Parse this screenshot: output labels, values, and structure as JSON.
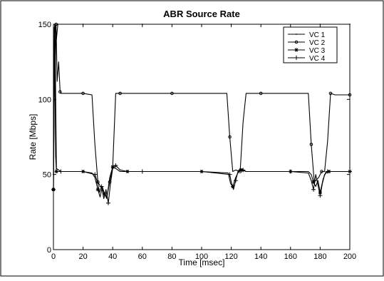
{
  "chart_data": {
    "type": "line",
    "title": "ABR  Source Rate",
    "xlabel": "Time [msec]",
    "ylabel": "Rate [Mbps]",
    "xlim": [
      0,
      200
    ],
    "ylim": [
      0,
      150
    ],
    "xticks": [
      0,
      20,
      40,
      60,
      80,
      100,
      120,
      140,
      160,
      180,
      200
    ],
    "yticks": [
      0,
      50,
      100,
      150
    ],
    "grid": false,
    "legend_position": "top-right",
    "series": [
      {
        "name": "VC  1",
        "marker": "point",
        "x": [
          0,
          1,
          2,
          3,
          5,
          10,
          20,
          30,
          40,
          60,
          80,
          100,
          120,
          140,
          160,
          180,
          200
        ],
        "y": [
          50,
          150,
          140,
          150,
          150,
          150,
          150,
          150,
          150,
          150,
          150,
          150,
          150,
          150,
          150,
          150,
          150
        ]
      },
      {
        "name": "VC  2",
        "marker": "circle",
        "x": [
          0,
          0.6,
          1.2,
          1.8,
          2.5,
          3.5,
          4.5,
          5,
          10,
          20,
          26,
          28,
          30,
          33,
          36,
          38,
          40,
          42,
          45,
          50,
          60,
          80,
          100,
          117,
          119,
          121,
          123,
          126,
          128,
          130,
          140,
          160,
          172,
          174,
          176,
          179,
          181,
          183,
          185,
          187,
          190,
          200
        ],
        "y": [
          40,
          148,
          120,
          150,
          112,
          125,
          105,
          104,
          104,
          104,
          103,
          70,
          45,
          40,
          35,
          45,
          55,
          104,
          104,
          104,
          104,
          104,
          104,
          104,
          75,
          52,
          53,
          52,
          85,
          104,
          104,
          104,
          104,
          70,
          45,
          48,
          52,
          52,
          72,
          104,
          103,
          103
        ]
      },
      {
        "name": "VC  3",
        "marker": "star",
        "x": [
          0,
          0.8,
          1.5,
          2,
          5,
          10,
          20,
          26,
          28,
          30,
          31.5,
          33,
          34.5,
          36,
          38,
          40,
          42,
          45,
          50,
          60,
          80,
          100,
          118,
          119.5,
          121,
          123,
          125,
          127,
          130,
          140,
          160,
          172,
          174,
          175.5,
          177,
          178.5,
          180,
          182,
          184,
          186,
          190,
          200
        ],
        "y": [
          40,
          150,
          62,
          52,
          52,
          52,
          52,
          51,
          48,
          40,
          35,
          42,
          37,
          34,
          48,
          55,
          54,
          52,
          52,
          52,
          52,
          52,
          51,
          44,
          42,
          48,
          52,
          53,
          52,
          52,
          52,
          52,
          50,
          45,
          42,
          46,
          38,
          47,
          52,
          52,
          52,
          52
        ]
      },
      {
        "name": "VC  4",
        "marker": "plus",
        "x": [
          0,
          1,
          2,
          5,
          10,
          20,
          28,
          30,
          31,
          32.5,
          34,
          35.5,
          37,
          38.5,
          40,
          42,
          45,
          50,
          60,
          80,
          100,
          119,
          120,
          121.5,
          123,
          124.5,
          126,
          128,
          130,
          140,
          160,
          172,
          174,
          175.5,
          177,
          178.5,
          180,
          181.5,
          183,
          185,
          190,
          200
        ],
        "y": [
          40,
          150,
          54,
          52,
          52,
          52,
          50,
          44,
          38,
          42,
          34,
          40,
          31,
          44,
          54,
          56,
          53,
          52,
          52,
          52,
          52,
          50,
          45,
          40,
          46,
          52,
          54,
          53,
          52,
          52,
          52,
          51,
          46,
          40,
          50,
          43,
          36,
          44,
          50,
          52,
          52,
          52
        ]
      }
    ]
  }
}
